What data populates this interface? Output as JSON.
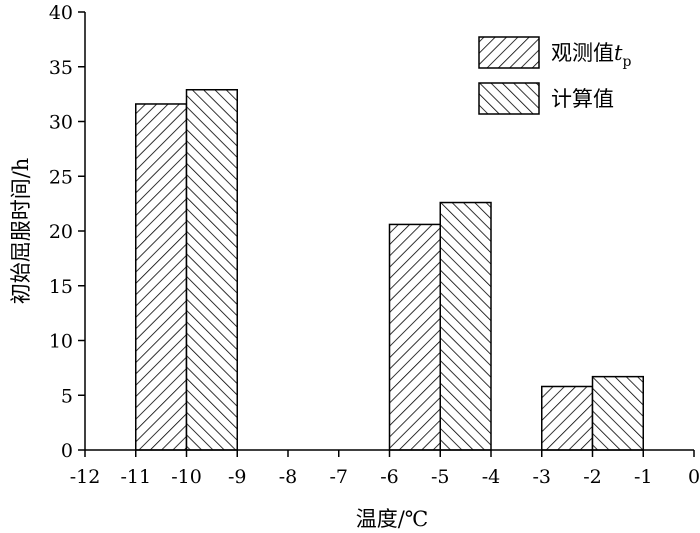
{
  "chart_data": {
    "type": "bar",
    "xlabel": "温度/℃",
    "ylabel": "初始屈服时间/h",
    "xlim": [
      -12,
      0
    ],
    "ylim": [
      0,
      40
    ],
    "x_ticks": [
      -12,
      -11,
      -10,
      -9,
      -8,
      -7,
      -6,
      -5,
      -4,
      -3,
      -2,
      -1,
      0
    ],
    "y_ticks": [
      0,
      5,
      10,
      15,
      20,
      25,
      30,
      35,
      40
    ],
    "x_tick_labels": [
      "-12",
      "-11",
      "-10",
      "-9",
      "-8",
      "-7",
      "-6",
      "-5",
      "-4",
      "-3",
      "-2",
      "-1",
      "0"
    ],
    "y_tick_labels": [
      "0",
      "5",
      "10",
      "15",
      "20",
      "25",
      "30",
      "35",
      "40"
    ],
    "categories": [
      "-10",
      "-5",
      "-2"
    ],
    "series": [
      {
        "name": "观测值",
        "name_sub": "t",
        "name_subscript": "p",
        "hatch": "forward-diagonal",
        "x": [
          -11,
          -6,
          -3
        ],
        "values": [
          31.6,
          20.6,
          5.8
        ]
      },
      {
        "name": "计算值",
        "hatch": "backward-diagonal",
        "x": [
          -9,
          -4,
          -1
        ],
        "values": [
          32.9,
          22.6,
          6.7
        ]
      }
    ],
    "bar_span_x": [
      [
        -11,
        -10
      ],
      [
        -10,
        -9
      ],
      [
        -6,
        -5
      ],
      [
        -5,
        -4
      ],
      [
        -3,
        -2
      ],
      [
        -2,
        -1
      ]
    ],
    "legend_position": "top-right",
    "grid": false
  }
}
